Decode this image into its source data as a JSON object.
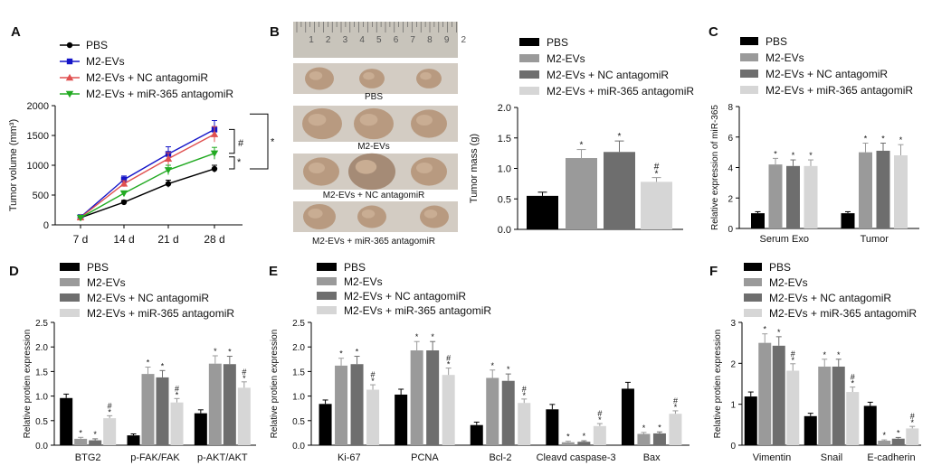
{
  "chart_data": [
    {
      "panel": "A",
      "type": "line",
      "x": [
        "7 d",
        "14 d",
        "21 d",
        "28 d"
      ],
      "ylabel": "Tumor volume (mm³)",
      "ylim": [
        0,
        2000
      ],
      "yticks": [
        "0",
        "500",
        "1000",
        "1500",
        "2000"
      ],
      "legend": "top-left",
      "series": [
        {
          "name": "PBS",
          "values": [
            120,
            380,
            690,
            940
          ],
          "err": [
            20,
            30,
            60,
            60
          ],
          "color": "#000000",
          "marker": "circle"
        },
        {
          "name": "M2-EVs",
          "values": [
            130,
            760,
            1190,
            1600
          ],
          "err": [
            20,
            60,
            120,
            150
          ],
          "color": "#1515c8",
          "marker": "square"
        },
        {
          "name": "M2-EVs + NC antagomiR",
          "values": [
            125,
            690,
            1110,
            1520
          ],
          "err": [
            20,
            50,
            100,
            130
          ],
          "color": "#e05050",
          "marker": "triangle"
        },
        {
          "name": "M2-EVs + miR-365 antagomiR",
          "values": [
            120,
            530,
            920,
            1200
          ],
          "err": [
            20,
            40,
            80,
            100
          ],
          "color": "#22aa22",
          "marker": "triangle-down"
        }
      ],
      "annotations": [
        "#",
        "*",
        "*"
      ]
    },
    {
      "panel": "B",
      "type": "bar",
      "categories": [
        "PBS",
        "M2-EVs",
        "M2-EVs + NC antagomiR",
        "M2-EVs + miR-365 antagomiR"
      ],
      "values": [
        0.55,
        1.17,
        1.27,
        0.78
      ],
      "err": [
        0.06,
        0.14,
        0.18,
        0.07
      ],
      "marks": [
        "",
        "*",
        "*",
        "#*"
      ],
      "ylabel": "Tumor mass (g)",
      "ylim": [
        0,
        2.0
      ],
      "yticks": [
        "0.0",
        "0.5",
        "1.0",
        "1.5",
        "2.0"
      ],
      "legend": "top"
    },
    {
      "panel": "C",
      "type": "bar",
      "categories": [
        "Serum Exo",
        "Tumor"
      ],
      "series": [
        {
          "name": "PBS",
          "values": [
            1.0,
            1.0
          ],
          "err": [
            0.1,
            0.1
          ]
        },
        {
          "name": "M2-EVs",
          "values": [
            4.2,
            5.0
          ],
          "err": [
            0.4,
            0.6
          ]
        },
        {
          "name": "M2-EVs + NC antagomiR",
          "values": [
            4.1,
            5.1
          ],
          "err": [
            0.4,
            0.5
          ]
        },
        {
          "name": "M2-EVs + miR-365 antagomiR",
          "values": [
            4.1,
            4.8
          ],
          "err": [
            0.4,
            0.7
          ]
        }
      ],
      "marks": [
        [
          "",
          "*",
          "*",
          "*"
        ],
        [
          "",
          "*",
          "*",
          "*"
        ]
      ],
      "ylabel": "Relative expression of miR-365",
      "ylim": [
        0,
        8
      ],
      "yticks": [
        "0",
        "2",
        "4",
        "6",
        "8"
      ],
      "legend": "top"
    },
    {
      "panel": "D",
      "type": "bar",
      "categories": [
        "BTG2",
        "p-FAK/FAK",
        "p-AKT/AKT"
      ],
      "series": [
        {
          "name": "PBS",
          "values": [
            0.96,
            0.2,
            0.65
          ],
          "err": [
            0.08,
            0.03,
            0.07
          ]
        },
        {
          "name": "M2-EVs",
          "values": [
            0.13,
            1.45,
            1.66
          ],
          "err": [
            0.03,
            0.14,
            0.16
          ]
        },
        {
          "name": "M2-EVs + NC antagomiR",
          "values": [
            0.1,
            1.38,
            1.65
          ],
          "err": [
            0.03,
            0.14,
            0.16
          ]
        },
        {
          "name": "M2-EVs + miR-365 antagomiR",
          "values": [
            0.55,
            0.87,
            1.17
          ],
          "err": [
            0.05,
            0.08,
            0.12
          ]
        }
      ],
      "marks": [
        [
          "",
          "*",
          "*",
          "#*"
        ],
        [
          "",
          "*",
          "*",
          "#*"
        ],
        [
          "",
          "*",
          "*",
          "#*"
        ]
      ],
      "ylabel": "Relative protien expression",
      "ylim": [
        0,
        2.5
      ],
      "yticks": [
        "0.0",
        "0.5",
        "1.0",
        "1.5",
        "2.0",
        "2.5"
      ],
      "legend": "top"
    },
    {
      "panel": "E",
      "type": "bar",
      "categories": [
        "Ki-67",
        "PCNA",
        "Bcl-2",
        "Cleavd caspase-3",
        "Bax"
      ],
      "series": [
        {
          "name": "PBS",
          "values": [
            0.84,
            1.03,
            0.41,
            0.73,
            1.15
          ],
          "err": [
            0.08,
            0.11,
            0.06,
            0.1,
            0.13
          ]
        },
        {
          "name": "M2-EVs",
          "values": [
            1.62,
            1.93,
            1.37,
            0.06,
            0.23
          ],
          "err": [
            0.15,
            0.18,
            0.16,
            0.02,
            0.03
          ]
        },
        {
          "name": "M2-EVs + NC antagomiR",
          "values": [
            1.65,
            1.93,
            1.31,
            0.07,
            0.24
          ],
          "err": [
            0.16,
            0.18,
            0.14,
            0.02,
            0.03
          ]
        },
        {
          "name": "M2-EVs + miR-365 antagomiR",
          "values": [
            1.13,
            1.43,
            0.86,
            0.39,
            0.64
          ],
          "err": [
            0.1,
            0.14,
            0.08,
            0.05,
            0.06
          ]
        }
      ],
      "marks": [
        [
          "",
          "*",
          "*",
          "#*"
        ],
        [
          "",
          "*",
          "*",
          "#*"
        ],
        [
          "",
          "*",
          "*",
          "#*"
        ],
        [
          "",
          "*",
          "*",
          "#*"
        ],
        [
          "",
          "*",
          "*",
          "#*"
        ]
      ],
      "ylabel": "Relative protien expression",
      "ylim": [
        0,
        2.5
      ],
      "yticks": [
        "0.0",
        "0.5",
        "1.0",
        "1.5",
        "2.0",
        "2.5"
      ],
      "legend": "top"
    },
    {
      "panel": "F",
      "type": "bar",
      "categories": [
        "Vimentin",
        "Snail",
        "E-cadherin"
      ],
      "series": [
        {
          "name": "PBS",
          "values": [
            1.19,
            0.71,
            0.96
          ],
          "err": [
            0.11,
            0.07,
            0.09
          ]
        },
        {
          "name": "M2-EVs",
          "values": [
            2.5,
            1.92,
            0.11
          ],
          "err": [
            0.22,
            0.18,
            0.02
          ]
        },
        {
          "name": "M2-EVs + NC antagomiR",
          "values": [
            2.43,
            1.92,
            0.16
          ],
          "err": [
            0.22,
            0.18,
            0.03
          ]
        },
        {
          "name": "M2-EVs + miR-365 antagomiR",
          "values": [
            1.82,
            1.3,
            0.41
          ],
          "err": [
            0.17,
            0.12,
            0.05
          ]
        }
      ],
      "marks": [
        [
          "",
          "*",
          "*",
          "#*"
        ],
        [
          "",
          "*",
          "*",
          "#*"
        ],
        [
          "",
          "*",
          "*",
          "#*"
        ]
      ],
      "ylabel": "Relative protien expression",
      "ylim": [
        0,
        3
      ],
      "yticks": [
        "0",
        "1",
        "2",
        "3"
      ],
      "legend": "top"
    }
  ],
  "panel_letters": [
    "A",
    "B",
    "C",
    "D",
    "E",
    "F"
  ],
  "photo": {
    "ruler_numbers": [
      "1",
      "2",
      "3",
      "4",
      "5",
      "6",
      "7",
      "8",
      "9",
      "2"
    ],
    "captions": [
      "PBS",
      "M2-EVs",
      "M2-EVs + NC antagomiR",
      "M2-EVs + miR-365 antagomiR"
    ]
  },
  "bar_colors": [
    "#000000",
    "#9a9a9a",
    "#6e6e6e",
    "#d6d6d6"
  ]
}
